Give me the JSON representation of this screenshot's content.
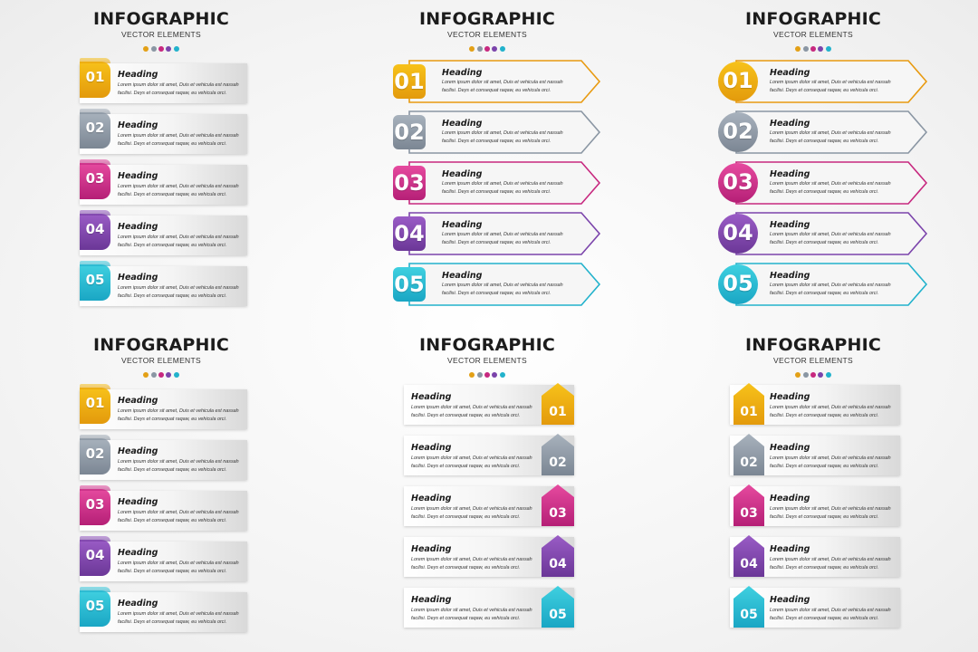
{
  "title": "INFOGRAPHIC",
  "subtitle": "VECTOR ELEMENTS",
  "colors": {
    "01": [
      "#f7c21a",
      "#e39a0c"
    ],
    "02": [
      "#a8b2bd",
      "#7b8693"
    ],
    "03": [
      "#e64a9f",
      "#b51f76"
    ],
    "04": [
      "#9a5cc6",
      "#6b3797"
    ],
    "05": [
      "#3fd0e0",
      "#1aa6c4"
    ],
    "dots": [
      "#e3a016",
      "#8a96a3",
      "#c7287f",
      "#7b44ab",
      "#22b2cc"
    ]
  },
  "items": [
    {
      "num": "01",
      "heading": "Heading",
      "body": "Lorem ipsum dolor sit amet, Duis et vehicula est nassah facilisi. Deys et consequat raqaw, eu vehicula orci."
    },
    {
      "num": "02",
      "heading": "Heading",
      "body": "Lorem ipsum dolor sit amet, Duis et vehicula est nassah facilisi. Deys et consequat raqaw, eu vehicula orci."
    },
    {
      "num": "03",
      "heading": "Heading",
      "body": "Lorem ipsum dolor sit amet, Duis et vehicula est nassah facilisi. Deys et consequat raqaw, eu vehicula orci."
    },
    {
      "num": "04",
      "heading": "Heading",
      "body": "Lorem ipsum dolor sit amet, Duis et vehicula est nassah facilisi. Deys et consequat raqaw, eu vehicula orci."
    },
    {
      "num": "05",
      "heading": "Heading",
      "body": "Lorem ipsum dolor sit amet, Duis et vehicula est nassah facilisi. Deys et consequat raqaw, eu vehicula orci."
    }
  ]
}
